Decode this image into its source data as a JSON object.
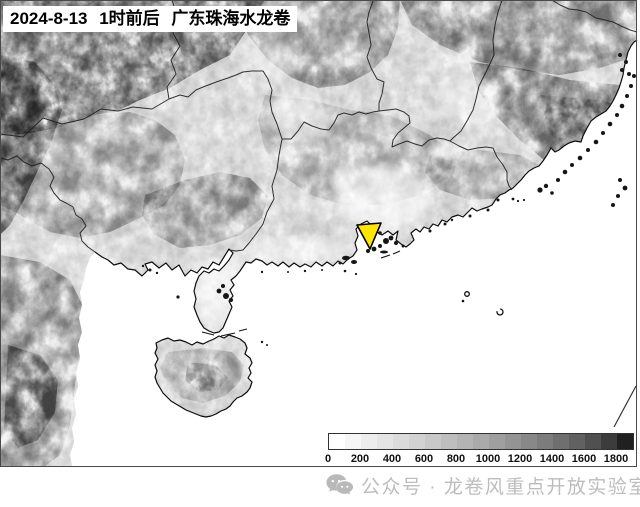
{
  "title": {
    "text": "2024-8-13 1时前后 广东珠海水龙卷"
  },
  "map": {
    "sea_color": "#ffffff",
    "land_color": "#f6f6f6",
    "marker": {
      "shape": "inverted-triangle",
      "fill": "#ffe600",
      "outline": "#000000"
    }
  },
  "colorbar": {
    "min": 0,
    "max": 1800,
    "interval": 200,
    "tick_labels": [
      "0",
      "200",
      "400",
      "600",
      "800",
      "1000",
      "1200",
      "1400",
      "1600",
      "1800"
    ],
    "segment_colors": [
      "#ffffff",
      "#f6f6f6",
      "#ededed",
      "#e4e4e4",
      "#dbdbdb",
      "#d2d2d2",
      "#c8c8c8",
      "#bebebe",
      "#b4b4b4",
      "#aaaaaa",
      "#9f9f9f",
      "#949494",
      "#888888",
      "#7c7c7c",
      "#6f6f6f",
      "#616161",
      "#505050",
      "#3c3c3c",
      "#202020"
    ]
  },
  "watermark": {
    "icon": "wechat-icon",
    "text": "公众号 · 龙卷风重点开放实验室"
  }
}
